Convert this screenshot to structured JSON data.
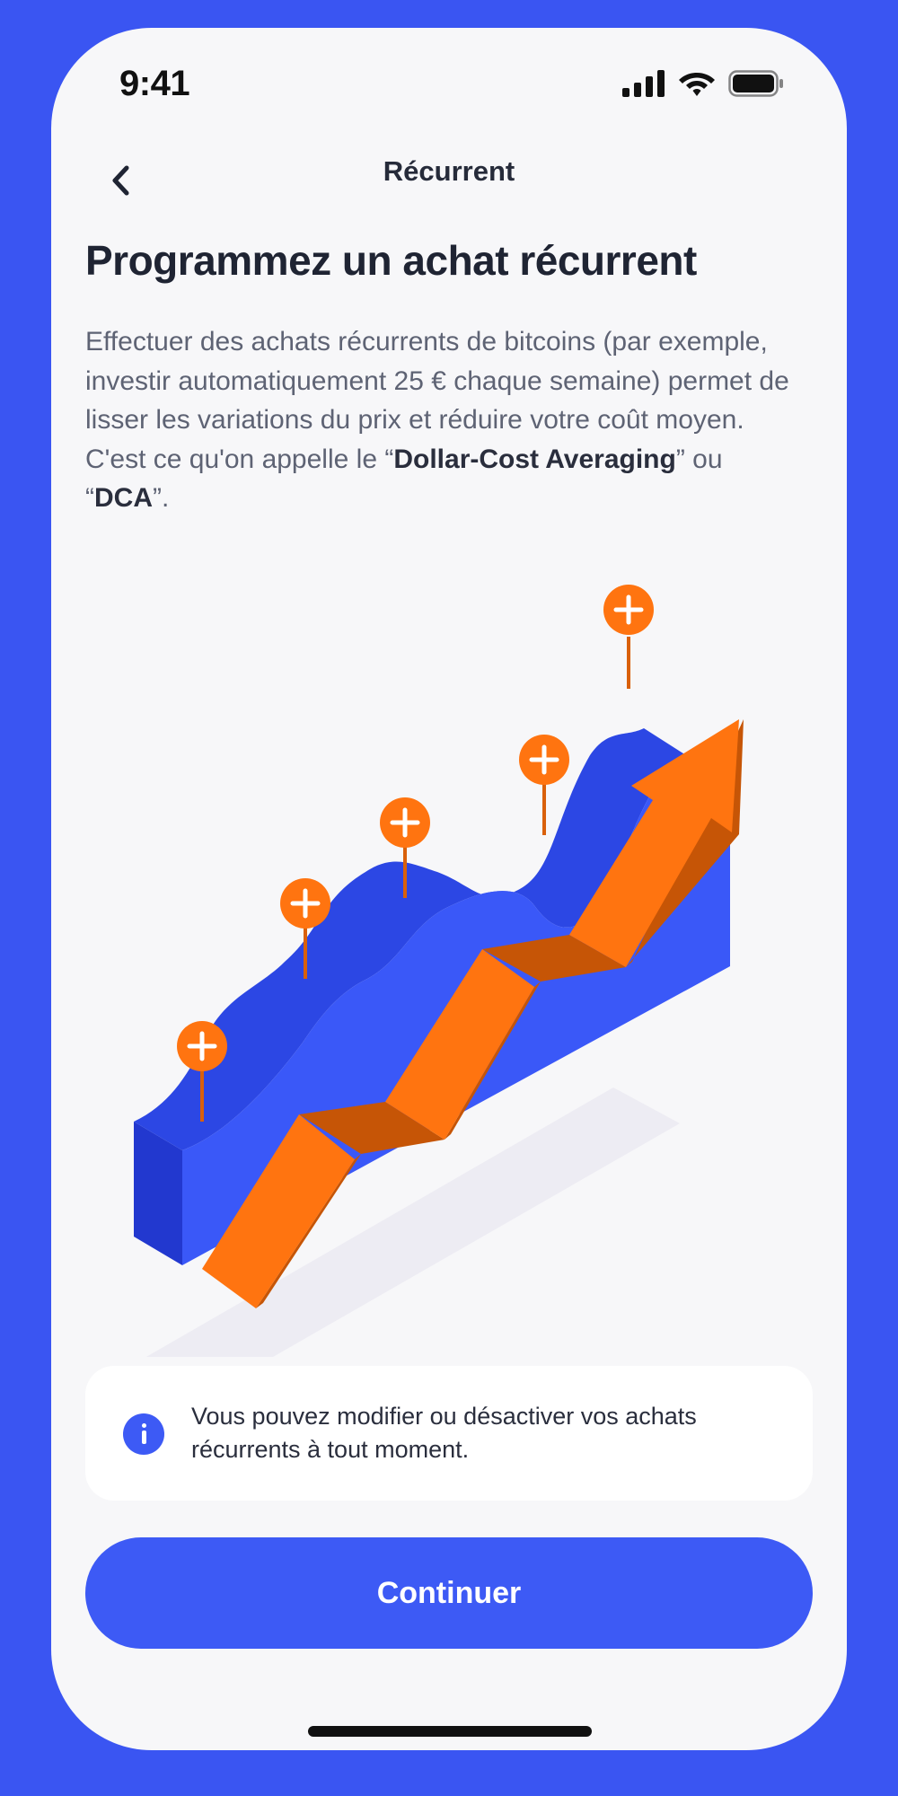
{
  "status_bar": {
    "time": "9:41"
  },
  "nav": {
    "title": "Récurrent"
  },
  "headline": "Programmez un achat récurrent",
  "description": {
    "text_before": "Effectuer des achats récurrents de bitcoins (par exemple, investir automatiquement 25 € chaque semaine) permet de lisser les variations du prix et réduire votre coût moyen. C'est ce qu'on appelle le “",
    "term_1": "Dollar-Cost Averaging",
    "text_middle": "” ou “",
    "term_2": "DCA",
    "text_after": "”."
  },
  "info_card": {
    "text": "Vous pouvez modifier ou désactiver vos achats récurrents à tout moment."
  },
  "cta": {
    "label": "Continuer"
  },
  "colors": {
    "background": "#3A55F2",
    "primary": "#3D5AF5",
    "accent_orange": "#FF7410",
    "card": "#FFFFFF"
  }
}
